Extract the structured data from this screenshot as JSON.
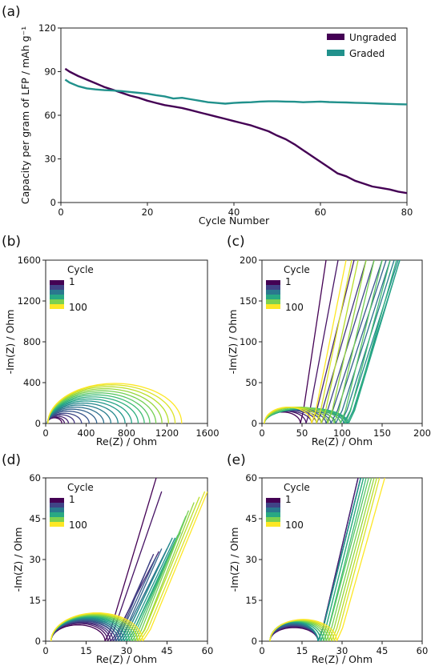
{
  "panels": [
    {
      "label": "(a)",
      "chart_data": {
        "type": "line",
        "xlabel": "Cycle Number",
        "ylabel": "Capacity per gram of LFP / mAh g⁻¹",
        "xlim": [
          0,
          80
        ],
        "ylim": [
          0,
          120
        ],
        "xticks": [
          0,
          20,
          40,
          60,
          80
        ],
        "yticks": [
          0,
          30,
          60,
          90,
          120
        ],
        "legend_position": "top-right",
        "series": [
          {
            "name": "Ungraded",
            "color": "#440154",
            "x": [
              1,
              2,
              4,
              6,
              8,
              10,
              12,
              14,
              16,
              18,
              20,
              22,
              24,
              26,
              28,
              30,
              32,
              34,
              36,
              38,
              40,
              42,
              44,
              46,
              48,
              50,
              52,
              54,
              56,
              58,
              60,
              62,
              64,
              66,
              68,
              70,
              72,
              74,
              76,
              78,
              80
            ],
            "y": [
              92,
              90,
              87,
              84.5,
              82,
              79.5,
              77.5,
              75.5,
              73.5,
              72,
              70,
              68.5,
              67,
              66,
              65,
              63.5,
              62,
              60.5,
              59,
              57.5,
              56,
              54.5,
              53,
              51,
              49,
              46,
              43.5,
              40,
              36,
              32,
              28,
              24,
              20,
              18,
              15,
              13,
              11,
              10,
              9,
              7.5,
              6.5
            ]
          },
          {
            "name": "Graded",
            "color": "#21918c",
            "x": [
              1,
              2,
              4,
              6,
              8,
              10,
              12,
              14,
              16,
              18,
              20,
              22,
              24,
              26,
              28,
              30,
              32,
              34,
              36,
              38,
              40,
              42,
              44,
              46,
              48,
              50,
              52,
              54,
              56,
              58,
              60,
              62,
              64,
              66,
              68,
              70,
              72,
              74,
              76,
              78,
              80
            ],
            "y": [
              84.5,
              82.5,
              80,
              78.5,
              77.8,
              77.3,
              77,
              76.6,
              76,
              75.4,
              74.8,
              73.8,
              73,
              71.5,
              72,
              71,
              70,
              69,
              68.5,
              68,
              68.5,
              68.8,
              69,
              69.4,
              69.6,
              69.6,
              69.4,
              69.3,
              69,
              69.2,
              69.4,
              69.1,
              68.9,
              68.8,
              68.6,
              68.4,
              68.2,
              68,
              67.8,
              67.6,
              67.5
            ]
          }
        ]
      }
    },
    {
      "label": "(b)",
      "chart_data": {
        "type": "line",
        "xlabel": "Re(Z) / Ohm",
        "ylabel": "-Im(Z) / Ohm",
        "xlim": [
          0,
          1600
        ],
        "ylim": [
          0,
          1600
        ],
        "xticks": [
          0,
          400,
          800,
          1200,
          1600
        ],
        "yticks": [
          0,
          400,
          800,
          1200,
          1600
        ],
        "legend_title": "Cycle",
        "legend_labels": [
          "1",
          "100"
        ],
        "curve_model": "semicircle",
        "series": {
          "count": 20,
          "start_x": [
            15,
            15,
            16,
            16,
            17,
            17,
            18,
            18,
            18,
            19,
            19,
            20,
            20,
            20,
            21,
            21,
            22,
            22,
            22,
            22
          ],
          "end_x": [
            160,
            185,
            225,
            285,
            355,
            430,
            505,
            575,
            645,
            715,
            785,
            850,
            915,
            975,
            1030,
            1090,
            1150,
            1215,
            1280,
            1345
          ],
          "peak_y": [
            55,
            60,
            70,
            85,
            100,
            120,
            140,
            160,
            180,
            200,
            220,
            240,
            260,
            280,
            300,
            320,
            340,
            360,
            378,
            392
          ]
        }
      }
    },
    {
      "label": "(c)",
      "chart_data": {
        "type": "line",
        "xlabel": "Re(Z) / Ohm",
        "ylabel": "-Im(Z) / Ohm",
        "xlim": [
          0,
          200
        ],
        "ylim": [
          0,
          200
        ],
        "xticks": [
          0,
          50,
          100,
          150,
          200
        ],
        "yticks": [
          0,
          50,
          100,
          150,
          200
        ],
        "legend_title": "Cycle",
        "legend_labels": [
          "1",
          "100"
        ],
        "curve_model": "arc-then-line",
        "series": {
          "count": 20,
          "start_x": [
            3,
            3,
            3,
            3,
            3,
            3,
            3,
            3,
            3,
            3,
            3,
            3,
            3,
            3,
            3,
            3,
            3,
            3,
            3,
            3
          ],
          "arc_end_x": [
            48,
            55,
            62,
            68,
            74,
            80,
            86,
            92,
            98,
            102,
            106,
            108,
            108,
            104,
            98,
            90,
            82,
            74,
            68,
            62
          ],
          "arc_peak_y": [
            14,
            15,
            15,
            16,
            16,
            17,
            17,
            17,
            18,
            18,
            18,
            18,
            19,
            19,
            19,
            20,
            20,
            20,
            20,
            20
          ],
          "line_end_x": [
            80,
            95,
            115,
            130,
            140,
            150,
            155,
            160,
            165,
            170,
            172,
            172,
            168,
            160,
            150,
            140,
            130,
            120,
            112,
            105
          ],
          "line_end_y": [
            200,
            200,
            200,
            200,
            200,
            200,
            200,
            200,
            200,
            200,
            200,
            200,
            200,
            200,
            200,
            200,
            200,
            200,
            200,
            200
          ]
        }
      }
    },
    {
      "label": "(d)",
      "chart_data": {
        "type": "line",
        "xlabel": "Re(Z) / Ohm",
        "ylabel": "-Im(Z) / Ohm",
        "xlim": [
          0,
          60
        ],
        "ylim": [
          0,
          60
        ],
        "xticks": [
          0,
          15,
          30,
          45,
          60
        ],
        "yticks": [
          0,
          15,
          30,
          45,
          60
        ],
        "legend_title": "Cycle",
        "legend_labels": [
          "1",
          "100"
        ],
        "curve_model": "arc-then-line",
        "series": {
          "count": 20,
          "start_x": [
            2,
            2,
            2,
            2,
            2,
            2,
            2,
            2,
            2,
            2,
            2,
            2,
            2,
            2,
            2,
            2,
            2,
            2,
            2,
            2
          ],
          "arc_end_x": [
            22,
            23,
            24,
            25,
            26,
            26,
            27,
            27,
            28,
            28,
            29,
            30,
            30,
            31,
            32,
            33,
            34,
            34,
            35,
            36
          ],
          "arc_peak_y": [
            6,
            6.5,
            6.8,
            7,
            7.3,
            7.6,
            7.8,
            8,
            8.2,
            8.4,
            8.6,
            8.8,
            9,
            9.2,
            9.4,
            9.6,
            9.8,
            10,
            10.2,
            10.4
          ],
          "line_end_x": [
            41,
            43,
            42,
            40,
            39,
            41,
            43,
            45,
            46,
            47,
            48,
            49,
            50,
            51,
            52,
            53,
            55,
            57,
            59,
            60
          ],
          "line_end_y": [
            60,
            55,
            33,
            32,
            30,
            31,
            34,
            34,
            36,
            38,
            38,
            39,
            40,
            43,
            46,
            48,
            51,
            53,
            55,
            55
          ]
        }
      }
    },
    {
      "label": "(e)",
      "chart_data": {
        "type": "line",
        "xlabel": "Re(Z) / Ohm",
        "ylabel": "-Im(Z) / Ohm",
        "xlim": [
          0,
          60
        ],
        "ylim": [
          0,
          60
        ],
        "xticks": [
          0,
          15,
          30,
          45,
          60
        ],
        "yticks": [
          0,
          15,
          30,
          45,
          60
        ],
        "legend_title": "Cycle",
        "legend_labels": [
          "1",
          "100"
        ],
        "curve_model": "arc-then-line",
        "series": {
          "count": 20,
          "start_x": [
            3,
            3,
            3,
            3,
            3,
            3,
            3,
            3,
            3,
            3,
            3,
            3,
            3,
            3,
            3,
            3,
            3,
            3,
            3,
            3
          ],
          "arc_end_x": [
            21,
            21,
            21,
            21,
            21,
            21,
            21,
            21,
            21,
            21,
            21,
            22,
            22,
            23,
            23,
            24,
            25,
            26,
            27,
            28
          ],
          "arc_peak_y": [
            5,
            5.2,
            5.4,
            5.6,
            5.8,
            6,
            6.2,
            6.4,
            6.6,
            6.8,
            7,
            7.1,
            7.2,
            7.3,
            7.4,
            7.5,
            7.6,
            7.7,
            7.8,
            8
          ],
          "line_end_x": [
            36,
            36,
            36,
            37,
            37,
            37,
            37,
            37,
            37,
            37,
            37,
            38,
            38,
            39,
            40,
            41,
            42,
            43,
            44,
            46
          ],
          "line_end_y": [
            60,
            60,
            60,
            60,
            60,
            60,
            60,
            60,
            60,
            60,
            60,
            60,
            60,
            60,
            60,
            60,
            60,
            60,
            60,
            60
          ]
        }
      }
    }
  ]
}
